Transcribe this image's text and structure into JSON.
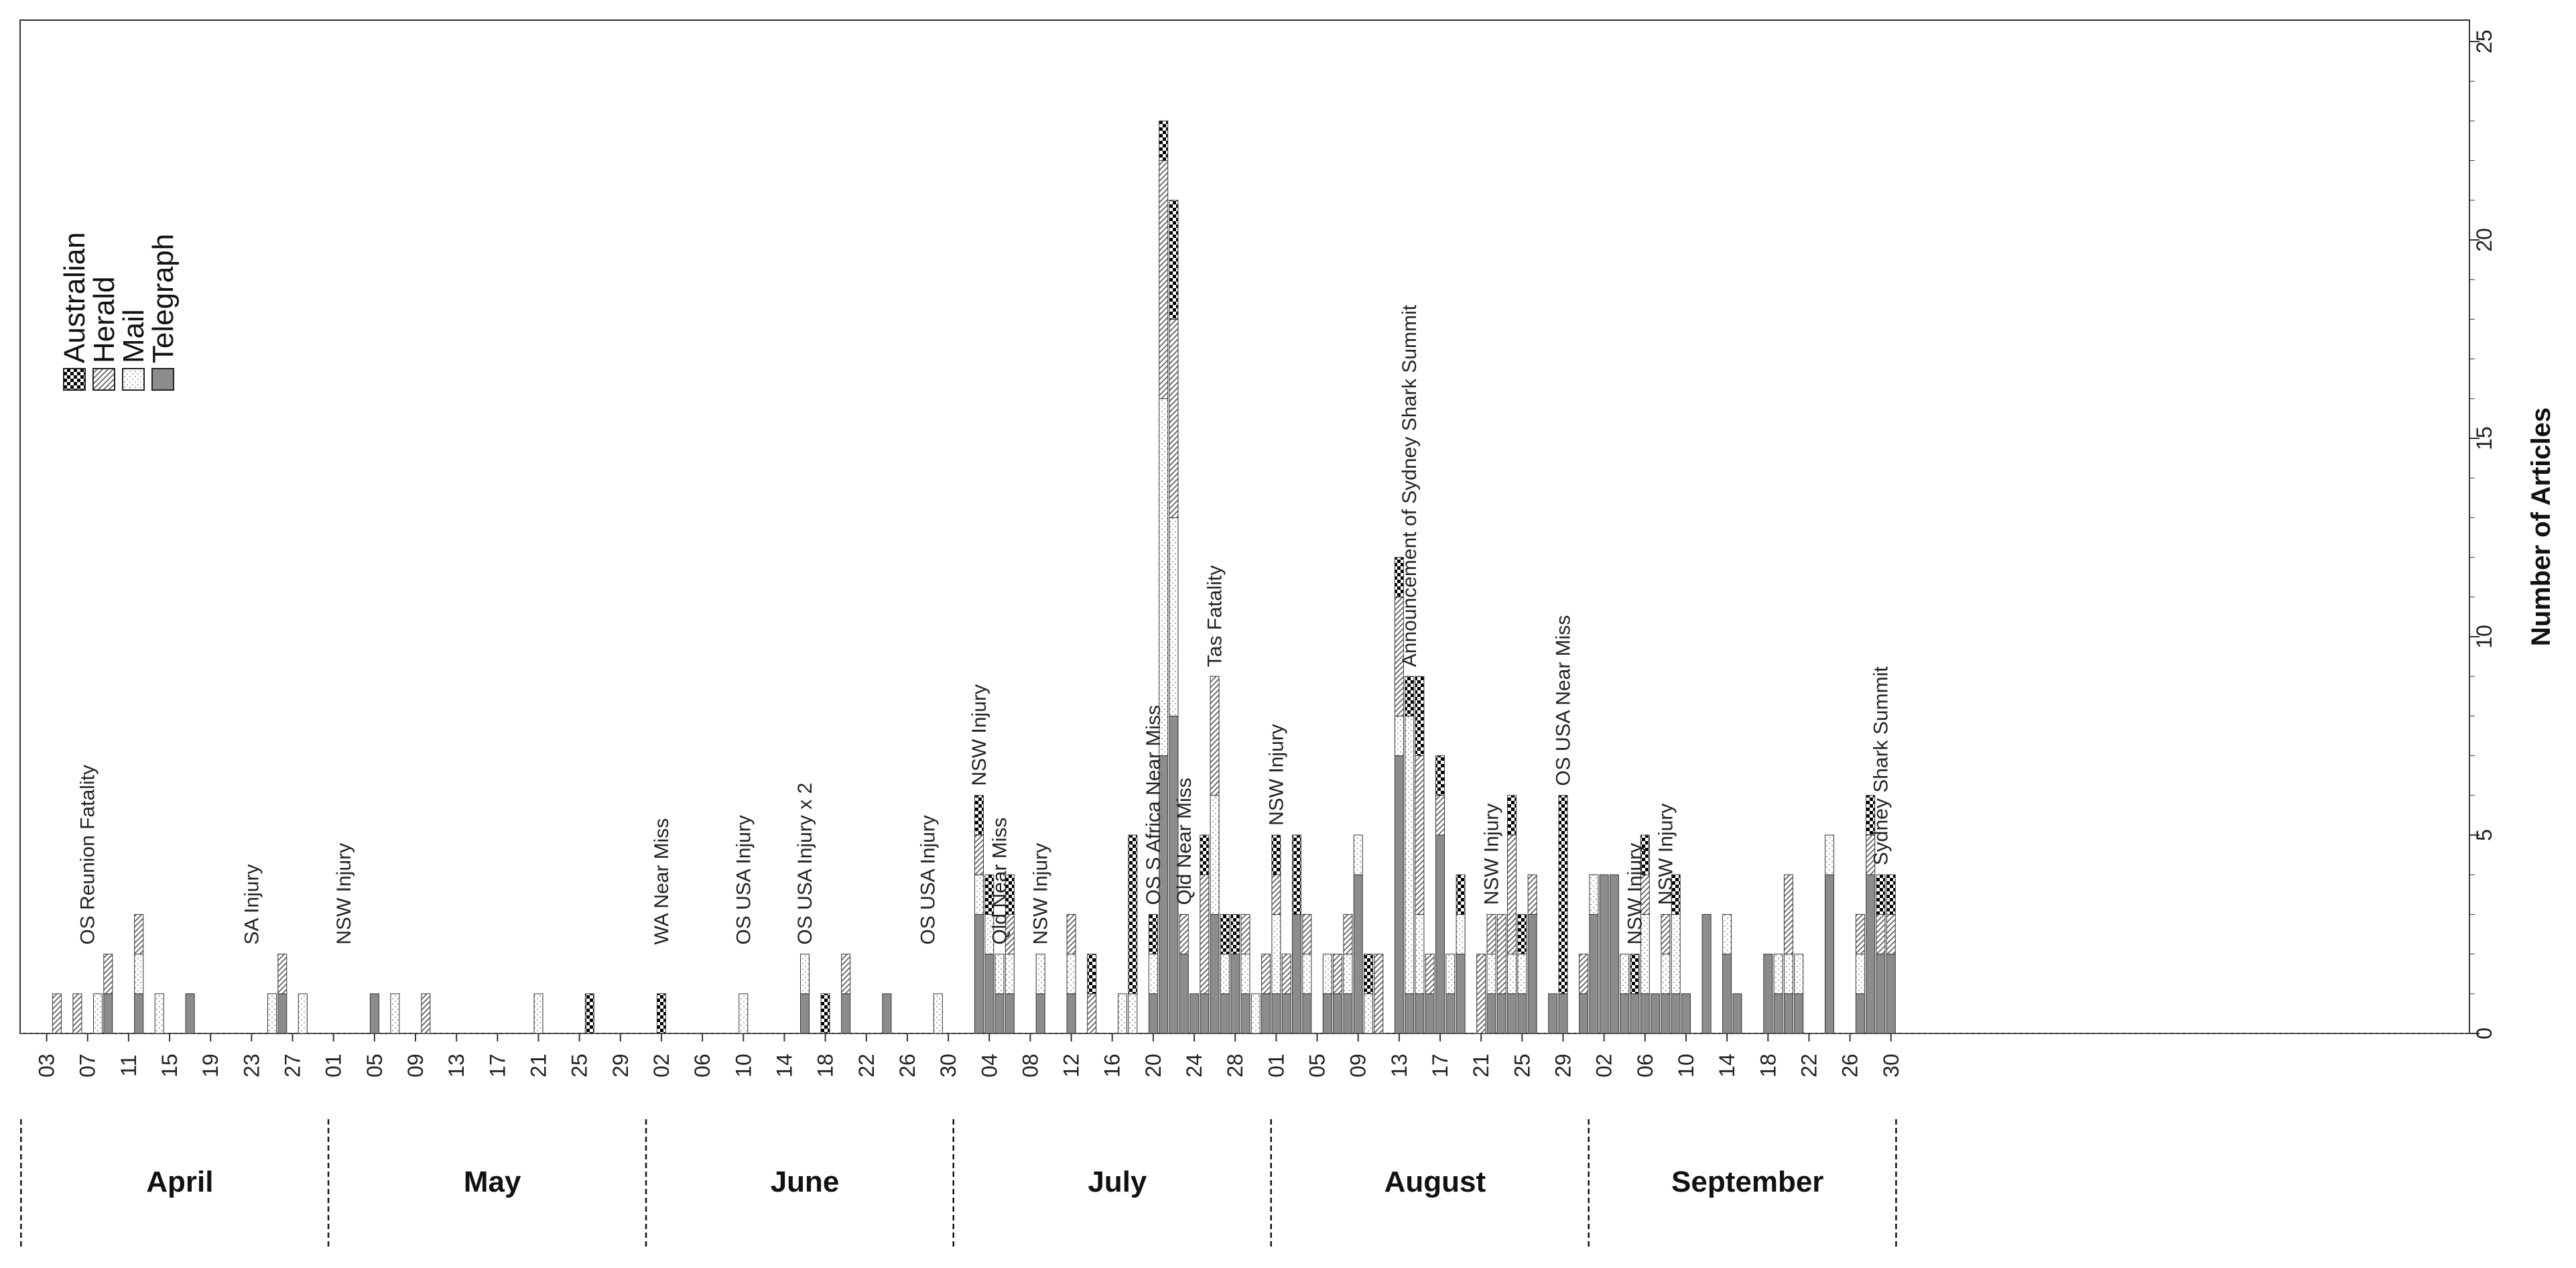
{
  "chart_data": {
    "type": "bar",
    "stacked": true,
    "orientation": "vertical",
    "ylabel": "Number of Articles",
    "ylim": [
      0,
      25
    ],
    "yticks": [
      0,
      5,
      10,
      15,
      20,
      25
    ],
    "y_axis_side": "right",
    "grid": false,
    "legend": {
      "placement": "upper-left"
    },
    "series": [
      {
        "name": "Telegraph",
        "pattern": "solid",
        "color": "#8c8c8c"
      },
      {
        "name": "Mail",
        "pattern": "dotted",
        "color": "#ffffff"
      },
      {
        "name": "Herald",
        "pattern": "diagonal-hatch",
        "color": "#ffffff"
      },
      {
        "name": "Australian",
        "pattern": "checkerboard",
        "color": "#000000"
      }
    ],
    "date_ticks": [
      "03",
      "07",
      "11",
      "15",
      "19",
      "23",
      "27",
      "01",
      "05",
      "09",
      "13",
      "17",
      "21",
      "25",
      "29",
      "02",
      "06",
      "10",
      "14",
      "18",
      "22",
      "26",
      "30",
      "04",
      "08",
      "12",
      "16",
      "20",
      "24",
      "28",
      "01",
      "05",
      "09",
      "13",
      "17",
      "21",
      "25",
      "29",
      "02",
      "06",
      "10",
      "14",
      "18",
      "22",
      "26",
      "30"
    ],
    "months": [
      "April",
      "May",
      "June",
      "July",
      "August",
      "September"
    ],
    "days": [
      {
        "date": "2015-04-04",
        "v": [
          0,
          0,
          1,
          0
        ]
      },
      {
        "date": "2015-04-06",
        "v": [
          0,
          0,
          1,
          0
        ]
      },
      {
        "date": "2015-04-08",
        "v": [
          0,
          1,
          0,
          0
        ]
      },
      {
        "date": "2015-04-09",
        "v": [
          1,
          0,
          1,
          0
        ]
      },
      {
        "date": "2015-04-12",
        "v": [
          1,
          1,
          1,
          0
        ]
      },
      {
        "date": "2015-04-14",
        "v": [
          0,
          1,
          0,
          0
        ]
      },
      {
        "date": "2015-04-17",
        "v": [
          1,
          0,
          0,
          0
        ]
      },
      {
        "date": "2015-04-25",
        "v": [
          0,
          1,
          0,
          0
        ]
      },
      {
        "date": "2015-04-26",
        "v": [
          1,
          0,
          1,
          0
        ]
      },
      {
        "date": "2015-04-28",
        "v": [
          0,
          1,
          0,
          0
        ]
      },
      {
        "date": "2015-05-05",
        "v": [
          1,
          0,
          0,
          0
        ]
      },
      {
        "date": "2015-05-07",
        "v": [
          0,
          1,
          0,
          0
        ]
      },
      {
        "date": "2015-05-10",
        "v": [
          0,
          0,
          1,
          0
        ]
      },
      {
        "date": "2015-05-21",
        "v": [
          0,
          1,
          0,
          0
        ]
      },
      {
        "date": "2015-05-26",
        "v": [
          0,
          0,
          0,
          1
        ]
      },
      {
        "date": "2015-06-02",
        "v": [
          0,
          0,
          0,
          1
        ]
      },
      {
        "date": "2015-06-10",
        "v": [
          0,
          1,
          0,
          0
        ]
      },
      {
        "date": "2015-06-16",
        "v": [
          1,
          1,
          0,
          0
        ]
      },
      {
        "date": "2015-06-18",
        "v": [
          0,
          0,
          0,
          1
        ]
      },
      {
        "date": "2015-06-20",
        "v": [
          1,
          0,
          1,
          0
        ]
      },
      {
        "date": "2015-06-24",
        "v": [
          1,
          0,
          0,
          0
        ]
      },
      {
        "date": "2015-06-29",
        "v": [
          0,
          1,
          0,
          0
        ]
      },
      {
        "date": "2015-07-03",
        "v": [
          3,
          1,
          1,
          1
        ]
      },
      {
        "date": "2015-07-04",
        "v": [
          2,
          1,
          0,
          1
        ]
      },
      {
        "date": "2015-07-05",
        "v": [
          1,
          1,
          0,
          0
        ]
      },
      {
        "date": "2015-07-06",
        "v": [
          1,
          1,
          1,
          1
        ]
      },
      {
        "date": "2015-07-09",
        "v": [
          1,
          1,
          0,
          0
        ]
      },
      {
        "date": "2015-07-12",
        "v": [
          1,
          1,
          1,
          0
        ]
      },
      {
        "date": "2015-07-14",
        "v": [
          0,
          0,
          1,
          1
        ]
      },
      {
        "date": "2015-07-17",
        "v": [
          0,
          1,
          0,
          0
        ]
      },
      {
        "date": "2015-07-18",
        "v": [
          0,
          1,
          0,
          4
        ]
      },
      {
        "date": "2015-07-20",
        "v": [
          1,
          1,
          0,
          1
        ]
      },
      {
        "date": "2015-07-21",
        "v": [
          7,
          9,
          6,
          1
        ]
      },
      {
        "date": "2015-07-22",
        "v": [
          8,
          5,
          5,
          3
        ]
      },
      {
        "date": "2015-07-23",
        "v": [
          2,
          0,
          1,
          0
        ]
      },
      {
        "date": "2015-07-24",
        "v": [
          1,
          0,
          0,
          0
        ]
      },
      {
        "date": "2015-07-25",
        "v": [
          1,
          0,
          3,
          1
        ]
      },
      {
        "date": "2015-07-26",
        "v": [
          3,
          3,
          3,
          0
        ]
      },
      {
        "date": "2015-07-27",
        "v": [
          1,
          1,
          0,
          1
        ]
      },
      {
        "date": "2015-07-28",
        "v": [
          2,
          0,
          0,
          1
        ]
      },
      {
        "date": "2015-07-29",
        "v": [
          1,
          1,
          1,
          0
        ]
      },
      {
        "date": "2015-07-30",
        "v": [
          0,
          1,
          0,
          0
        ]
      },
      {
        "date": "2015-07-31",
        "v": [
          1,
          0,
          1,
          0
        ]
      },
      {
        "date": "2015-08-01",
        "v": [
          1,
          2,
          1,
          1
        ]
      },
      {
        "date": "2015-08-02",
        "v": [
          1,
          0,
          1,
          0
        ]
      },
      {
        "date": "2015-08-03",
        "v": [
          3,
          0,
          0,
          2
        ]
      },
      {
        "date": "2015-08-04",
        "v": [
          1,
          1,
          1,
          0
        ]
      },
      {
        "date": "2015-08-06",
        "v": [
          1,
          1,
          0,
          0
        ]
      },
      {
        "date": "2015-08-07",
        "v": [
          1,
          0,
          1,
          0
        ]
      },
      {
        "date": "2015-08-08",
        "v": [
          1,
          1,
          1,
          0
        ]
      },
      {
        "date": "2015-08-09",
        "v": [
          4,
          1,
          0,
          0
        ]
      },
      {
        "date": "2015-08-10",
        "v": [
          0,
          1,
          0,
          1
        ]
      },
      {
        "date": "2015-08-11",
        "v": [
          0,
          0,
          2,
          0
        ]
      },
      {
        "date": "2015-08-13",
        "v": [
          7,
          1,
          3,
          1
        ]
      },
      {
        "date": "2015-08-14",
        "v": [
          1,
          7,
          0,
          1
        ]
      },
      {
        "date": "2015-08-15",
        "v": [
          1,
          2,
          4,
          2
        ]
      },
      {
        "date": "2015-08-16",
        "v": [
          1,
          0,
          1,
          0
        ]
      },
      {
        "date": "2015-08-17",
        "v": [
          5,
          0,
          1,
          1
        ]
      },
      {
        "date": "2015-08-18",
        "v": [
          1,
          1,
          0,
          0
        ]
      },
      {
        "date": "2015-08-19",
        "v": [
          2,
          1,
          0,
          1
        ]
      },
      {
        "date": "2015-08-21",
        "v": [
          0,
          0,
          2,
          0
        ]
      },
      {
        "date": "2015-08-22",
        "v": [
          1,
          1,
          1,
          0
        ]
      },
      {
        "date": "2015-08-23",
        "v": [
          1,
          0,
          2,
          0
        ]
      },
      {
        "date": "2015-08-24",
        "v": [
          1,
          1,
          3,
          1
        ]
      },
      {
        "date": "2015-08-25",
        "v": [
          1,
          1,
          0,
          1
        ]
      },
      {
        "date": "2015-08-26",
        "v": [
          3,
          0,
          1,
          0
        ]
      },
      {
        "date": "2015-08-28",
        "v": [
          1,
          0,
          0,
          0
        ]
      },
      {
        "date": "2015-08-29",
        "v": [
          1,
          0,
          0,
          5
        ]
      },
      {
        "date": "2015-08-31",
        "v": [
          1,
          0,
          1,
          0
        ]
      },
      {
        "date": "2015-09-01",
        "v": [
          3,
          1,
          0,
          0
        ]
      },
      {
        "date": "2015-09-02",
        "v": [
          4,
          0,
          0,
          0
        ]
      },
      {
        "date": "2015-09-03",
        "v": [
          4,
          0,
          0,
          0
        ]
      },
      {
        "date": "2015-09-04",
        "v": [
          1,
          1,
          0,
          0
        ]
      },
      {
        "date": "2015-09-05",
        "v": [
          1,
          0,
          0,
          1
        ]
      },
      {
        "date": "2015-09-06",
        "v": [
          1,
          2,
          1,
          1
        ]
      },
      {
        "date": "2015-09-07",
        "v": [
          1,
          0,
          0,
          0
        ]
      },
      {
        "date": "2015-09-08",
        "v": [
          1,
          1,
          1,
          0
        ]
      },
      {
        "date": "2015-09-09",
        "v": [
          1,
          2,
          0,
          1
        ]
      },
      {
        "date": "2015-09-10",
        "v": [
          1,
          0,
          0,
          0
        ]
      },
      {
        "date": "2015-09-12",
        "v": [
          3,
          0,
          0,
          0
        ]
      },
      {
        "date": "2015-09-14",
        "v": [
          2,
          1,
          0,
          0
        ]
      },
      {
        "date": "2015-09-15",
        "v": [
          1,
          0,
          0,
          0
        ]
      },
      {
        "date": "2015-09-18",
        "v": [
          2,
          0,
          0,
          0
        ]
      },
      {
        "date": "2015-09-19",
        "v": [
          1,
          1,
          0,
          0
        ]
      },
      {
        "date": "2015-09-20",
        "v": [
          1,
          1,
          2,
          0
        ]
      },
      {
        "date": "2015-09-21",
        "v": [
          1,
          1,
          0,
          0
        ]
      },
      {
        "date": "2015-09-24",
        "v": [
          4,
          1,
          0,
          0
        ]
      },
      {
        "date": "2015-09-27",
        "v": [
          1,
          1,
          1,
          0
        ]
      },
      {
        "date": "2015-09-28",
        "v": [
          4,
          0,
          1,
          1
        ]
      },
      {
        "date": "2015-09-29",
        "v": [
          2,
          0,
          1,
          1
        ]
      },
      {
        "date": "2015-09-30",
        "v": [
          2,
          0,
          1,
          1
        ]
      }
    ],
    "annotations": [
      {
        "date": "2015-04-07",
        "text": "OS Reunion Fatality"
      },
      {
        "date": "2015-04-23",
        "text": "SA Injury"
      },
      {
        "date": "2015-05-02",
        "text": "NSW Injury"
      },
      {
        "date": "2015-06-02",
        "text": "WA Near Miss"
      },
      {
        "date": "2015-06-10",
        "text": "OS USA Injury"
      },
      {
        "date": "2015-06-16",
        "text": "OS USA Injury x 2"
      },
      {
        "date": "2015-06-28",
        "text": "OS USA Injury"
      },
      {
        "date": "2015-07-03",
        "text": "NSW Injury"
      },
      {
        "date": "2015-07-05",
        "text": "Qld Near Miss"
      },
      {
        "date": "2015-07-09",
        "text": "NSW Injury"
      },
      {
        "date": "2015-07-20",
        "text": "OS S Africa Near Miss"
      },
      {
        "date": "2015-07-23",
        "text": "Qld Near Miss"
      },
      {
        "date": "2015-07-26",
        "text": "Tas Fatality"
      },
      {
        "date": "2015-08-01",
        "text": "NSW Injury"
      },
      {
        "date": "2015-08-14",
        "text": "Announcement of Sydney Shark Summit"
      },
      {
        "date": "2015-08-22",
        "text": "NSW Injury"
      },
      {
        "date": "2015-08-29",
        "text": "OS USA Near Miss"
      },
      {
        "date": "2015-09-05",
        "text": "NSW Injury"
      },
      {
        "date": "2015-09-08",
        "text": "NSW Injury"
      },
      {
        "date": "2015-09-29",
        "text": "Sydney Shark Summit"
      }
    ]
  }
}
